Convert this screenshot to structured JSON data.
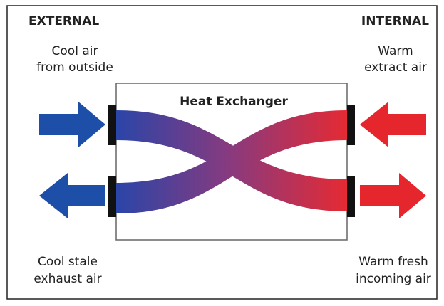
{
  "headings": {
    "external": "EXTERNAL",
    "internal": "INTERNAL"
  },
  "title": "Heat Exchanger",
  "labels": {
    "cool_in": [
      "Cool air",
      "from outside"
    ],
    "warm_extract": [
      "Warm",
      "extract air"
    ],
    "cool_exhaust": [
      "Cool stale",
      "exhaust air"
    ],
    "warm_fresh": [
      "Warm fresh",
      "incoming air"
    ]
  }
}
